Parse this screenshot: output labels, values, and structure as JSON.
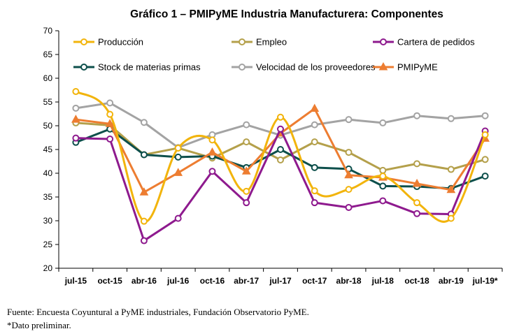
{
  "chart_data": {
    "type": "line",
    "title": "Gráfico 1 – PMIPyME Industria Manufacturera: Componentes",
    "xlabel": "",
    "ylabel": "",
    "ylim": [
      20,
      70
    ],
    "yticks": [
      20,
      25,
      30,
      35,
      40,
      45,
      50,
      55,
      60,
      65,
      70
    ],
    "grid": false,
    "legend_position": "top",
    "categories": [
      "jul-15",
      "oct-15",
      "abr-16",
      "jul-16",
      "oct-16",
      "abr-17",
      "jul-17",
      "oct-17",
      "abr-18",
      "jul-18",
      "oct-18",
      "abr-19",
      "jul-19*"
    ],
    "series": [
      {
        "name": "Producción",
        "color": "#f2b40c",
        "marker": "circle",
        "smooth": true,
        "values": [
          57.2,
          52.4,
          29.9,
          45.3,
          47.0,
          36.2,
          51.8,
          36.3,
          36.6,
          39.4,
          33.8,
          30.5,
          48.1
        ]
      },
      {
        "name": "Empleo",
        "color": "#b4a04b",
        "marker": "circle",
        "smooth": false,
        "values": [
          50.6,
          50.1,
          43.9,
          45.3,
          43.2,
          46.6,
          42.8,
          46.6,
          44.4,
          40.6,
          42.0,
          40.8,
          42.9
        ]
      },
      {
        "name": "Cartera de pedidos",
        "color": "#8e1a8e",
        "marker": "circle",
        "smooth": false,
        "values": [
          47.4,
          47.2,
          25.8,
          30.5,
          40.4,
          33.8,
          49.3,
          33.8,
          32.8,
          34.2,
          31.5,
          31.4,
          48.9
        ]
      },
      {
        "name": "Stock de materias primas",
        "color": "#0d4f4b",
        "marker": "circle",
        "smooth": false,
        "values": [
          46.5,
          49.3,
          43.9,
          43.4,
          43.6,
          41.2,
          45.0,
          41.2,
          40.9,
          37.3,
          37.2,
          36.8,
          39.4
        ]
      },
      {
        "name": "Velocidad de los proveedores",
        "color": "#a3a3a3",
        "marker": "circle",
        "smooth": false,
        "values": [
          53.7,
          54.8,
          50.7,
          45.4,
          48.1,
          50.2,
          48.0,
          50.2,
          51.3,
          50.6,
          52.1,
          51.5,
          52.1
        ]
      },
      {
        "name": "PMIPyME",
        "color": "#ed7d31",
        "marker": "triangle",
        "smooth": false,
        "values": [
          51.3,
          50.4,
          36.0,
          40.1,
          44.4,
          40.4,
          48.4,
          53.6,
          39.6,
          39.1,
          37.8,
          36.5,
          47.3
        ]
      }
    ]
  },
  "footnotes": {
    "source": "Fuente: Encuesta Coyuntural a PyME industriales, Fundación Observatorio PyME.",
    "note": "*Dato preliminar."
  }
}
